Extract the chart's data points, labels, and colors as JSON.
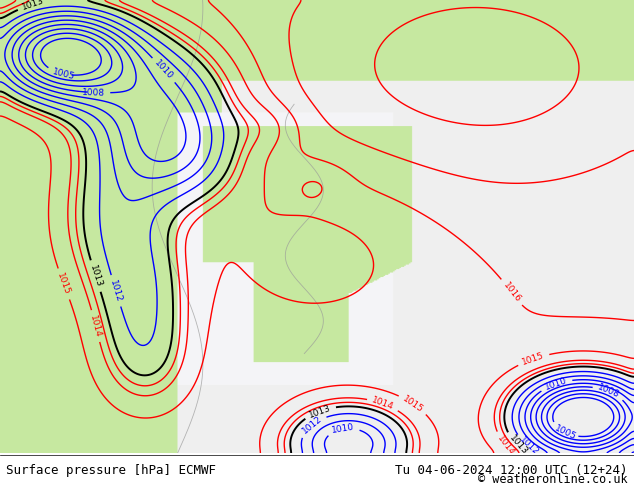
{
  "title_left": "Surface pressure [hPa] ECMWF",
  "title_right": "Tu 04-06-2024 12:00 UTC (12+24)",
  "copyright": "© weatheronline.co.uk",
  "fig_width": 6.34,
  "fig_height": 4.9,
  "dpi": 100,
  "line_color_red": "#ff0000",
  "line_color_blue": "#0000ff",
  "line_color_black": "#000000",
  "line_color_gray": "#999999",
  "text_color": "#000000",
  "font_size_footer": 9,
  "land_green": "#c8e8a0",
  "ocean_gray": "#e8e8e8",
  "ocean_white": "#f0f0f0"
}
